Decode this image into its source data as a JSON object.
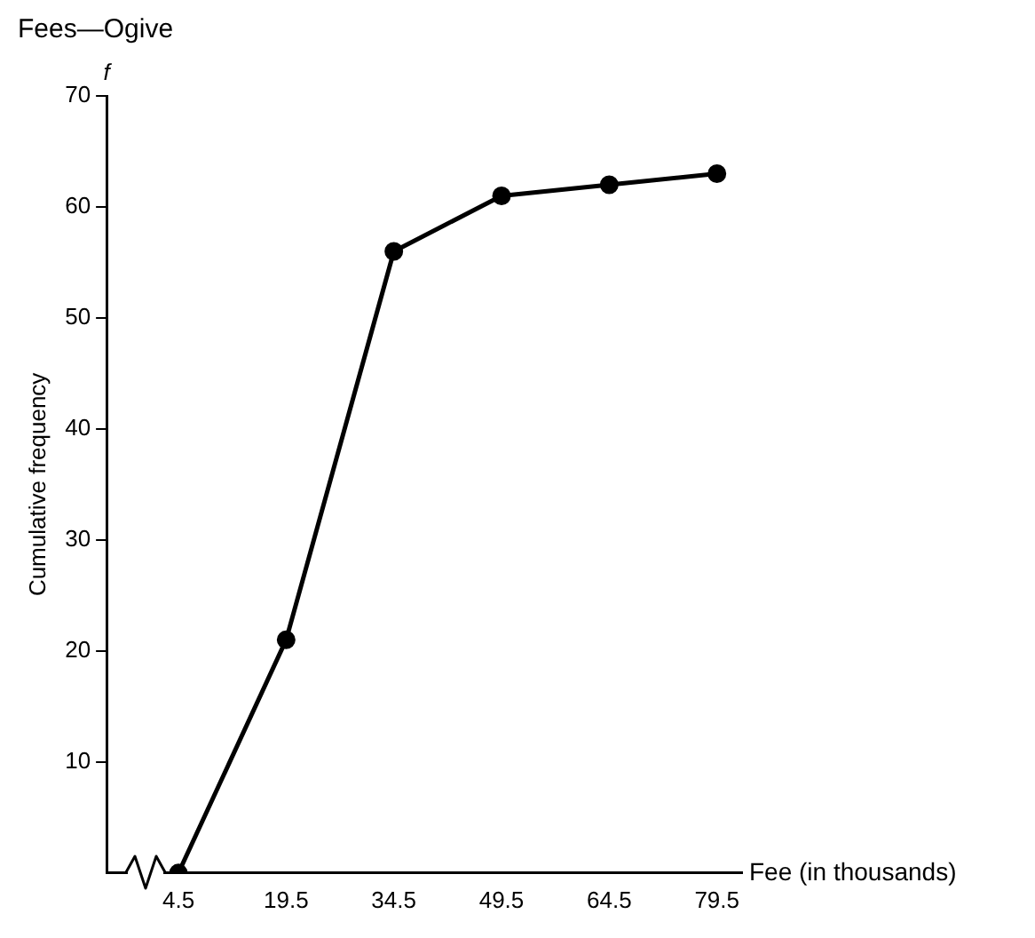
{
  "chart_data": {
    "type": "line",
    "title": "Fees—Ogive",
    "xlabel": "Fee (in thousands)",
    "ylabel": "Cumulative frequency",
    "annotations": [
      "f"
    ],
    "x": [
      4.5,
      19.5,
      34.5,
      49.5,
      64.5,
      79.5
    ],
    "series": [
      {
        "color": "#000000",
        "values": [
          0,
          21,
          56,
          61,
          62,
          63
        ]
      }
    ],
    "xlim": [
      -5.5,
      83
    ],
    "xticks": [
      4.5,
      19.5,
      34.5,
      49.5,
      64.5,
      79.5
    ],
    "ylim": [
      0,
      70
    ],
    "yticks": [
      10,
      20,
      30,
      40,
      50,
      60,
      70
    ],
    "grid": false,
    "legend": false,
    "marker": "circle",
    "line_style": "solid"
  }
}
